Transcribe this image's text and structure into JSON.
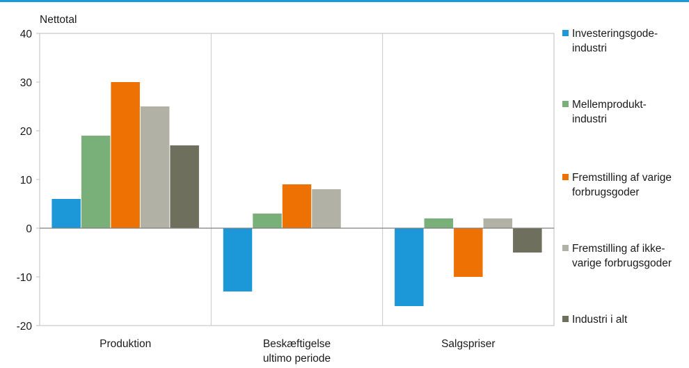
{
  "chart_data": {
    "type": "bar",
    "ylabel": "Nettotal",
    "ylim": [
      -20,
      40
    ],
    "yticks": [
      -20,
      -10,
      0,
      10,
      20,
      30,
      40
    ],
    "categories": [
      "Produktion",
      "Beskæftigelse\nultimo periode",
      "Salgspriser"
    ],
    "series": [
      {
        "name": "Investeringsgode-\nindustri",
        "color": "#1c97d8",
        "values": [
          6,
          -13,
          -16
        ]
      },
      {
        "name": "Mellemprodukt-\nindustri",
        "color": "#79b07a",
        "values": [
          19,
          3,
          2
        ]
      },
      {
        "name": "Fremstilling af varige\nforbrugsgoder",
        "color": "#ee7203",
        "values": [
          30,
          9,
          -10
        ]
      },
      {
        "name": "Fremstilling af ikke-\nvarige forbrugsgoder",
        "color": "#b2b1a5",
        "values": [
          25,
          8,
          2
        ]
      },
      {
        "name": "Industri i alt",
        "color": "#6f6f5e",
        "values": [
          17,
          null,
          -5
        ]
      }
    ],
    "grid": "vertical separators",
    "legend": "right"
  }
}
